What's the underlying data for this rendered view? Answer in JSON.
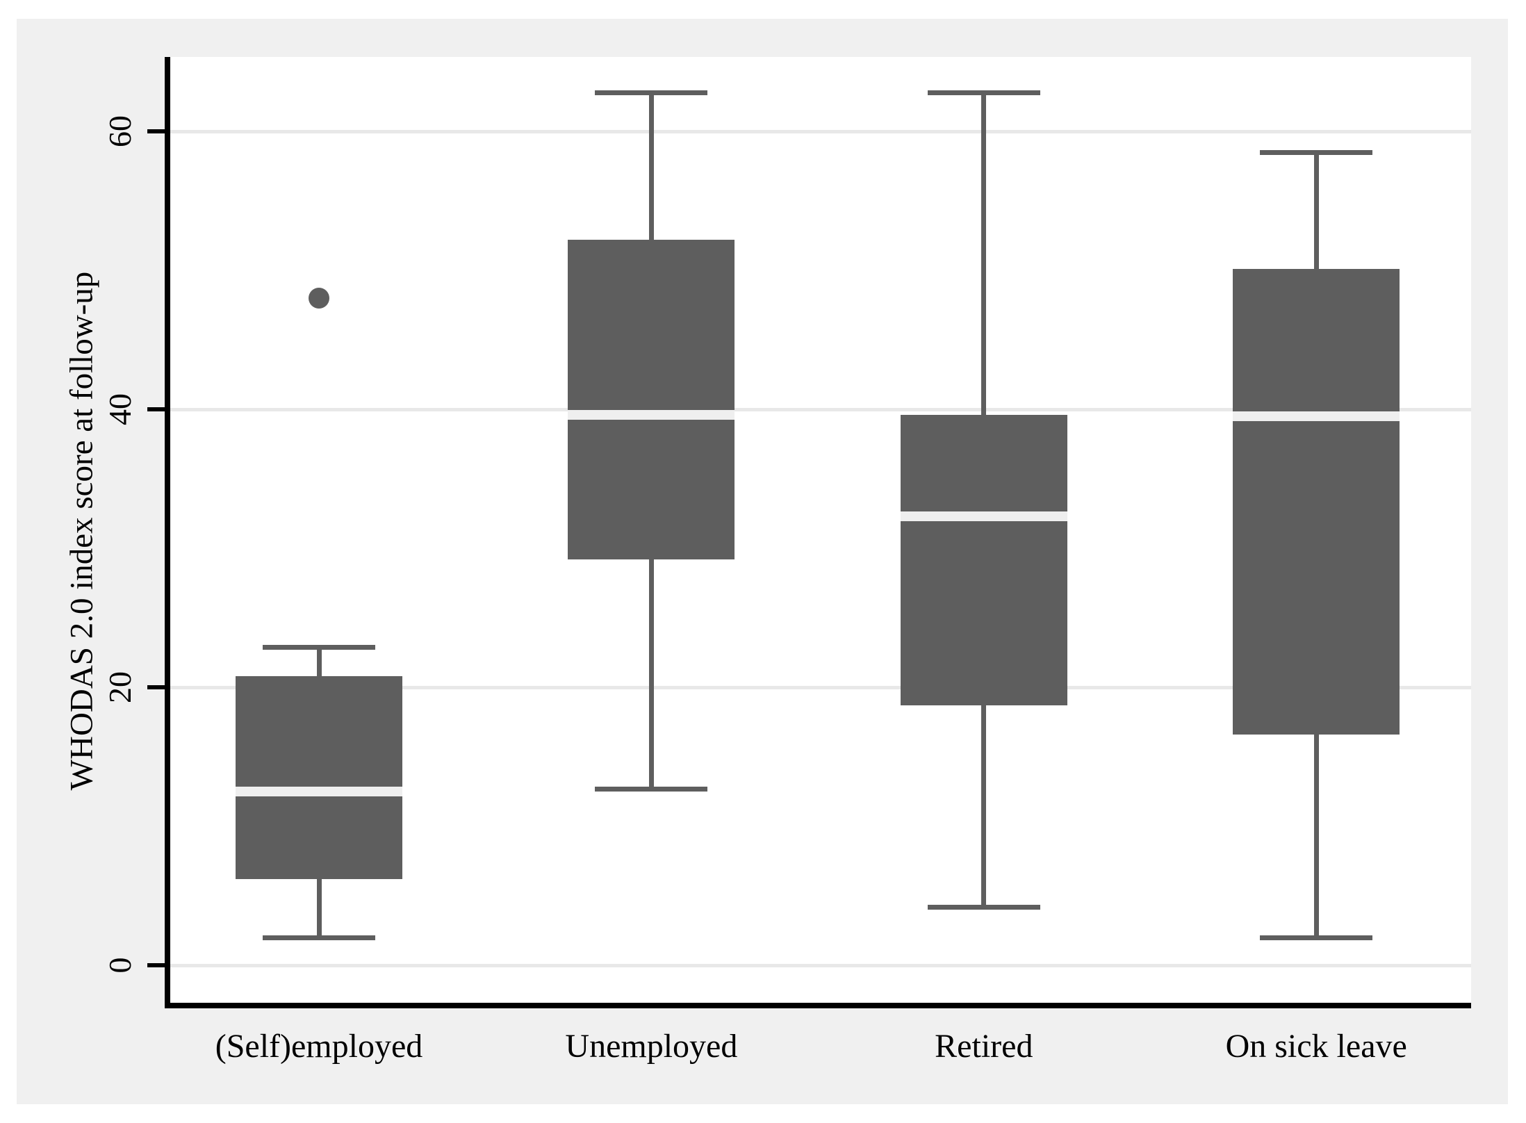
{
  "figure": {
    "page_bg": "#ffffff",
    "panel_bg": "#f0f0f0",
    "plot_bg": "#ffffff",
    "grid_color": "#e8e8e8",
    "axis_color": "#000000",
    "text_color": "#000000",
    "box_fill": "#5e5e5e",
    "whisker_color": "#5e5e5e",
    "median_color": "#efefef"
  },
  "chart_data": {
    "type": "boxplot",
    "title": "",
    "xlabel": "",
    "ylabel": "WHODAS 2.0 index score at follow-up",
    "ylim": [
      -2.9,
      65.3
    ],
    "yticks": [
      0,
      20,
      40,
      60
    ],
    "grid": true,
    "legend": "none",
    "categories": [
      "(Self)employed",
      "Unemployed",
      "Retired",
      "On sick leave"
    ],
    "series": [
      {
        "category": "(Self)employed",
        "min": 2.0,
        "q1": 6.2,
        "median": 12.5,
        "q3": 20.8,
        "max": 22.9,
        "outliers": [
          48.0
        ]
      },
      {
        "category": "Unemployed",
        "min": 12.7,
        "q1": 29.2,
        "median": 39.6,
        "q3": 52.2,
        "max": 62.8,
        "outliers": []
      },
      {
        "category": "Retired",
        "min": 4.2,
        "q1": 18.7,
        "median": 32.3,
        "q3": 39.6,
        "max": 62.8,
        "outliers": []
      },
      {
        "category": "On sick leave",
        "min": 2.0,
        "q1": 16.6,
        "median": 39.5,
        "q3": 50.1,
        "max": 58.5,
        "outliers": []
      }
    ]
  }
}
